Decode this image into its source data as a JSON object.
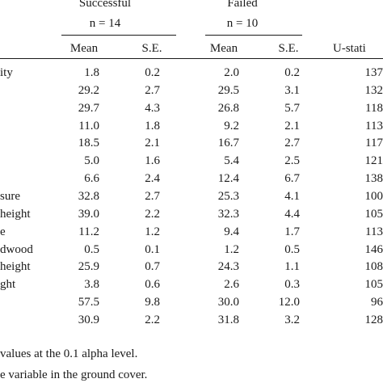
{
  "groups": [
    {
      "name": "Successful",
      "n": "n = 14"
    },
    {
      "name": "Failed",
      "n": "n = 10"
    }
  ],
  "columns": [
    "Mean",
    "S.E.",
    "Mean",
    "S.E.",
    "U-stati"
  ],
  "row_labels": [
    "ity",
    "",
    "",
    "",
    "",
    "",
    "",
    "sure",
    "height",
    "e",
    "dwood",
    " height",
    "ght",
    "",
    ""
  ],
  "rows": [
    [
      "1.8",
      "0.2",
      "2.0",
      "0.2",
      "137"
    ],
    [
      "29.2",
      "2.7",
      "29.5",
      "3.1",
      "132"
    ],
    [
      "29.7",
      "4.3",
      "26.8",
      "5.7",
      "118"
    ],
    [
      "11.0",
      "1.8",
      "9.2",
      "2.1",
      "113"
    ],
    [
      "18.5",
      "2.1",
      "16.7",
      "2.7",
      "117"
    ],
    [
      "5.0",
      "1.6",
      "5.4",
      "2.5",
      "121"
    ],
    [
      "6.6",
      "2.4",
      "12.4",
      "6.7",
      "138"
    ],
    [
      "32.8",
      "2.7",
      "25.3",
      "4.1",
      "100"
    ],
    [
      "39.0",
      "2.2",
      "32.3",
      "4.4",
      "105"
    ],
    [
      "11.2",
      "1.2",
      "9.4",
      "1.7",
      "113"
    ],
    [
      "0.5",
      "0.1",
      "1.2",
      "0.5",
      "146"
    ],
    [
      "25.9",
      "0.7",
      "24.3",
      "1.1",
      "108"
    ],
    [
      "3.8",
      "0.6",
      "2.6",
      "0.3",
      "105"
    ],
    [
      "57.5",
      "9.8",
      "30.0",
      "12.0",
      "96"
    ],
    [
      "30.9",
      "2.2",
      "31.8",
      "3.2",
      "128"
    ]
  ],
  "footnotes": [
    "values at the 0.1 alpha level.",
    "e variable in the ground cover."
  ]
}
